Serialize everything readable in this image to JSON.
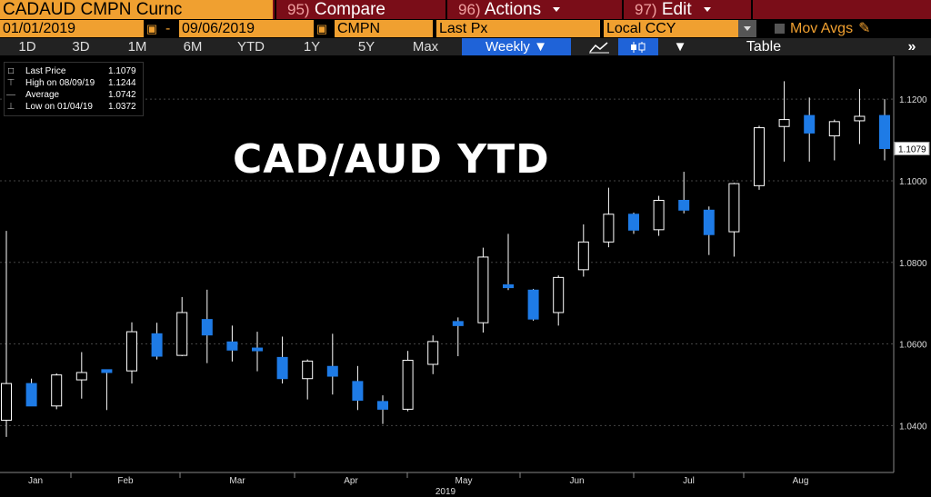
{
  "toolbar": {
    "ticker": "CADAUD CMPN Curnc",
    "compare_num": "95)",
    "compare_label": "Compare",
    "actions_num": "96)",
    "actions_label": "Actions",
    "edit_num": "97)",
    "edit_label": "Edit"
  },
  "settings": {
    "start_date": "01/01/2019",
    "end_date": "09/06/2019",
    "source": "CMPN",
    "field": "Last Px",
    "currency": "Local CCY",
    "mov_avgs": "Mov Avgs"
  },
  "periods": [
    "1D",
    "3D",
    "1M",
    "6M",
    "YTD",
    "1Y",
    "5Y",
    "Max"
  ],
  "frequency": "Weekly",
  "table_label": "Table",
  "legend": {
    "items": [
      {
        "name": "Last Price",
        "value": "1.1079"
      },
      {
        "name": "High on 08/09/19",
        "value": "1.1244"
      },
      {
        "name": "Average",
        "value": "1.0742"
      },
      {
        "name": "Low on 01/04/19",
        "value": "1.0372"
      }
    ]
  },
  "colors": {
    "up_fill": "#000000",
    "down_fill": "#1e7be6",
    "accent": "#f0a030",
    "menu_bar": "#7a0d18"
  },
  "chart_data": {
    "type": "candlestick",
    "title": "CAD/AUD YTD",
    "xlabel": "2019",
    "x_tick_labels": [
      "Jan",
      "Feb",
      "Mar",
      "Apr",
      "May",
      "Jun",
      "Jul",
      "Aug"
    ],
    "y_tick_labels": [
      "1.0400",
      "1.0600",
      "1.0800",
      "1.1000",
      "1.1200"
    ],
    "ylim": [
      1.0285,
      1.1305
    ],
    "last_price_label": "1.1079",
    "candles": [
      {
        "o": 1.0413,
        "h": 1.0877,
        "l": 1.0372,
        "c": 1.0503
      },
      {
        "o": 1.0503,
        "h": 1.0515,
        "l": 1.0448,
        "c": 1.0448
      },
      {
        "o": 1.0448,
        "h": 1.0528,
        "l": 1.044,
        "c": 1.0524
      },
      {
        "o": 1.0512,
        "h": 1.058,
        "l": 1.0466,
        "c": 1.053
      },
      {
        "o": 1.0537,
        "h": 1.0537,
        "l": 1.0438,
        "c": 1.053
      },
      {
        "o": 1.0534,
        "h": 1.0653,
        "l": 1.0503,
        "c": 1.063
      },
      {
        "o": 1.0625,
        "h": 1.0652,
        "l": 1.0562,
        "c": 1.057
      },
      {
        "o": 1.0572,
        "h": 1.0715,
        "l": 1.057,
        "c": 1.0677
      },
      {
        "o": 1.066,
        "h": 1.0733,
        "l": 1.0553,
        "c": 1.0622
      },
      {
        "o": 1.0605,
        "h": 1.0645,
        "l": 1.0557,
        "c": 1.0585
      },
      {
        "o": 1.059,
        "h": 1.063,
        "l": 1.0533,
        "c": 1.0584
      },
      {
        "o": 1.0567,
        "h": 1.0618,
        "l": 1.0503,
        "c": 1.0515
      },
      {
        "o": 1.0515,
        "h": 1.0562,
        "l": 1.0464,
        "c": 1.0558
      },
      {
        "o": 1.0545,
        "h": 1.0625,
        "l": 1.0476,
        "c": 1.0521
      },
      {
        "o": 1.0508,
        "h": 1.0546,
        "l": 1.0438,
        "c": 1.0462
      },
      {
        "o": 1.0459,
        "h": 1.0474,
        "l": 1.0404,
        "c": 1.044
      },
      {
        "o": 1.044,
        "h": 1.0583,
        "l": 1.0435,
        "c": 1.056
      },
      {
        "o": 1.055,
        "h": 1.0621,
        "l": 1.0526,
        "c": 1.0606
      },
      {
        "o": 1.0655,
        "h": 1.0665,
        "l": 1.057,
        "c": 1.0645
      },
      {
        "o": 1.0652,
        "h": 1.0836,
        "l": 1.0628,
        "c": 1.0813
      },
      {
        "o": 1.0745,
        "h": 1.087,
        "l": 1.0732,
        "c": 1.0738
      },
      {
        "o": 1.0732,
        "h": 1.0735,
        "l": 1.0657,
        "c": 1.0661
      },
      {
        "o": 1.0677,
        "h": 1.0768,
        "l": 1.0645,
        "c": 1.0763
      },
      {
        "o": 1.0782,
        "h": 1.0893,
        "l": 1.0765,
        "c": 1.085
      },
      {
        "o": 1.085,
        "h": 1.0983,
        "l": 1.0837,
        "c": 1.0918
      },
      {
        "o": 1.0918,
        "h": 1.0922,
        "l": 1.087,
        "c": 1.0879
      },
      {
        "o": 1.088,
        "h": 1.0963,
        "l": 1.0865,
        "c": 1.0952
      },
      {
        "o": 1.0952,
        "h": 1.1022,
        "l": 1.092,
        "c": 1.0928
      },
      {
        "o": 1.0928,
        "h": 1.0937,
        "l": 1.0818,
        "c": 1.0868
      },
      {
        "o": 1.0875,
        "h": 1.0995,
        "l": 1.0814,
        "c": 1.0993
      },
      {
        "o": 1.0988,
        "h": 1.1135,
        "l": 1.0978,
        "c": 1.113
      },
      {
        "o": 1.1133,
        "h": 1.1244,
        "l": 1.1047,
        "c": 1.115
      },
      {
        "o": 1.116,
        "h": 1.1204,
        "l": 1.1047,
        "c": 1.1117
      },
      {
        "o": 1.111,
        "h": 1.115,
        "l": 1.105,
        "c": 1.1145
      },
      {
        "o": 1.1147,
        "h": 1.1225,
        "l": 1.109,
        "c": 1.1158
      },
      {
        "o": 1.116,
        "h": 1.12,
        "l": 1.105,
        "c": 1.1079
      }
    ]
  }
}
